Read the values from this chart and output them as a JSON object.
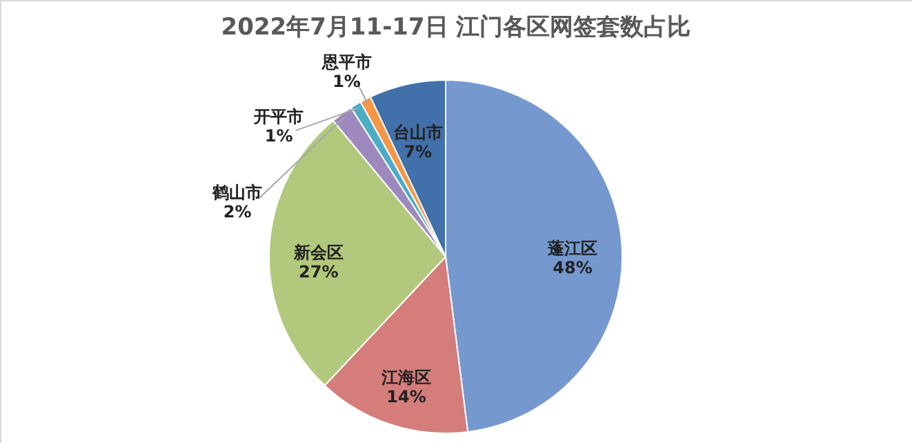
{
  "chart_data": {
    "type": "pie",
    "title": "2022年7月11-17日 江门各区网签套数占比",
    "categories": [
      "蓬江区",
      "江海区",
      "新会区",
      "鹤山市",
      "开平市",
      "恩平市",
      "台山市"
    ],
    "values": [
      48,
      14,
      27,
      2,
      1,
      1,
      7
    ],
    "value_labels": [
      "48%",
      "14%",
      "27%",
      "2%",
      "1%",
      "1%",
      "7%"
    ],
    "colors": [
      "#7598cf",
      "#d47d7b",
      "#b2c87c",
      "#9d89bd",
      "#4bacc6",
      "#f79646",
      "#4170aa"
    ]
  }
}
